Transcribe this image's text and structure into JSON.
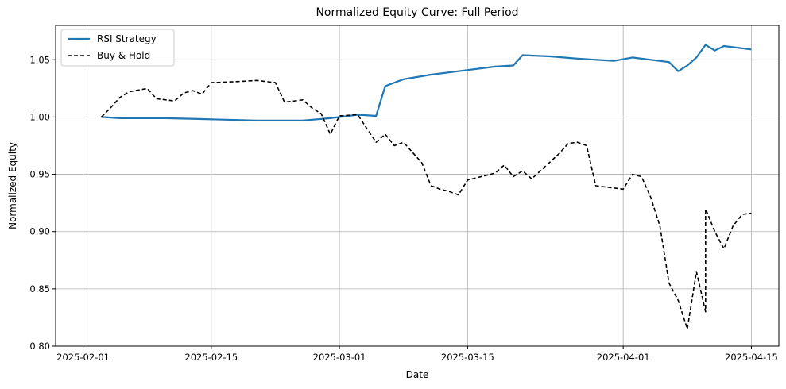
{
  "chart_data": {
    "type": "line",
    "title": "Normalized Equity Curve: Full Period",
    "xlabel": "Date",
    "ylabel": "Normalized Equity",
    "xlim": [
      "2025-01-29",
      "2025-04-18"
    ],
    "ylim": [
      0.8,
      1.08
    ],
    "x_ticks": [
      "2025-02-01",
      "2025-02-15",
      "2025-03-01",
      "2025-03-15",
      "2025-04-01",
      "2025-04-15"
    ],
    "y_ticks": [
      0.8,
      0.85,
      0.9,
      0.95,
      1.0,
      1.05
    ],
    "y_tick_labels": [
      "0.80",
      "0.85",
      "0.90",
      "0.95",
      "1.00",
      "1.05"
    ],
    "grid": true,
    "legend_position": "top-left",
    "series": [
      {
        "name": "RSI Strategy",
        "color": "#1f77b4",
        "style": "solid",
        "points": [
          [
            "2025-02-03",
            1.0
          ],
          [
            "2025-02-05",
            0.999
          ],
          [
            "2025-02-10",
            0.999
          ],
          [
            "2025-02-15",
            0.998
          ],
          [
            "2025-02-20",
            0.997
          ],
          [
            "2025-02-25",
            0.997
          ],
          [
            "2025-02-28",
            0.999
          ],
          [
            "2025-03-03",
            1.002
          ],
          [
            "2025-03-05",
            1.001
          ],
          [
            "2025-03-06",
            1.027
          ],
          [
            "2025-03-08",
            1.033
          ],
          [
            "2025-03-11",
            1.037
          ],
          [
            "2025-03-14",
            1.04
          ],
          [
            "2025-03-18",
            1.044
          ],
          [
            "2025-03-20",
            1.045
          ],
          [
            "2025-03-21",
            1.054
          ],
          [
            "2025-03-24",
            1.053
          ],
          [
            "2025-03-27",
            1.051
          ],
          [
            "2025-03-31",
            1.049
          ],
          [
            "2025-04-02",
            1.052
          ],
          [
            "2025-04-04",
            1.05
          ],
          [
            "2025-04-06",
            1.048
          ],
          [
            "2025-04-07",
            1.04
          ],
          [
            "2025-04-08",
            1.045
          ],
          [
            "2025-04-09",
            1.052
          ],
          [
            "2025-04-10",
            1.063
          ],
          [
            "2025-04-11",
            1.058
          ],
          [
            "2025-04-12",
            1.062
          ],
          [
            "2025-04-15",
            1.059
          ]
        ]
      },
      {
        "name": "Buy & Hold",
        "color": "#000000",
        "style": "dashed",
        "points": [
          [
            "2025-02-03",
            1.0
          ],
          [
            "2025-02-04",
            1.008
          ],
          [
            "2025-02-05",
            1.017
          ],
          [
            "2025-02-06",
            1.022
          ],
          [
            "2025-02-08",
            1.025
          ],
          [
            "2025-02-09",
            1.016
          ],
          [
            "2025-02-11",
            1.014
          ],
          [
            "2025-02-12",
            1.021
          ],
          [
            "2025-02-13",
            1.023
          ],
          [
            "2025-02-14",
            1.02
          ],
          [
            "2025-02-15",
            1.03
          ],
          [
            "2025-02-18",
            1.031
          ],
          [
            "2025-02-20",
            1.032
          ],
          [
            "2025-02-22",
            1.03
          ],
          [
            "2025-02-23",
            1.013
          ],
          [
            "2025-02-25",
            1.015
          ],
          [
            "2025-02-26",
            1.008
          ],
          [
            "2025-02-27",
            1.003
          ],
          [
            "2025-02-28",
            0.985
          ],
          [
            "2025-03-01",
            1.001
          ],
          [
            "2025-03-03",
            1.002
          ],
          [
            "2025-03-04",
            0.99
          ],
          [
            "2025-03-05",
            0.978
          ],
          [
            "2025-03-06",
            0.985
          ],
          [
            "2025-03-07",
            0.975
          ],
          [
            "2025-03-08",
            0.978
          ],
          [
            "2025-03-10",
            0.96
          ],
          [
            "2025-03-11",
            0.94
          ],
          [
            "2025-03-12",
            0.937
          ],
          [
            "2025-03-13",
            0.935
          ],
          [
            "2025-03-14",
            0.932
          ],
          [
            "2025-03-15",
            0.945
          ],
          [
            "2025-03-18",
            0.951
          ],
          [
            "2025-03-19",
            0.958
          ],
          [
            "2025-03-20",
            0.948
          ],
          [
            "2025-03-21",
            0.953
          ],
          [
            "2025-03-22",
            0.946
          ],
          [
            "2025-03-25",
            0.968
          ],
          [
            "2025-03-26",
            0.977
          ],
          [
            "2025-03-27",
            0.978
          ],
          [
            "2025-03-28",
            0.975
          ],
          [
            "2025-03-29",
            0.94
          ],
          [
            "2025-04-01",
            0.937
          ],
          [
            "2025-04-02",
            0.95
          ],
          [
            "2025-04-03",
            0.948
          ],
          [
            "2025-04-04",
            0.93
          ],
          [
            "2025-04-05",
            0.905
          ],
          [
            "2025-04-06",
            0.855
          ],
          [
            "2025-04-07",
            0.84
          ],
          [
            "2025-04-08",
            0.815
          ],
          [
            "2025-04-09",
            0.865
          ],
          [
            "2025-04-10",
            0.83
          ],
          [
            "2025-04-10",
            0.92
          ],
          [
            "2025-04-11",
            0.9
          ],
          [
            "2025-04-12",
            0.885
          ],
          [
            "2025-04-13",
            0.905
          ],
          [
            "2025-04-14",
            0.915
          ],
          [
            "2025-04-15",
            0.916
          ]
        ]
      }
    ]
  }
}
